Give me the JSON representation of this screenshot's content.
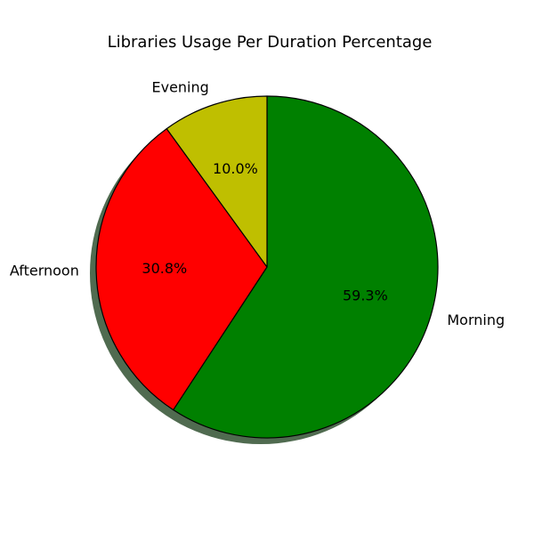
{
  "chart_data": {
    "type": "pie",
    "title": "Libraries Usage Per Duration Percentage",
    "categories": [
      "Morning",
      "Afternoon",
      "Evening"
    ],
    "values": [
      59.3,
      30.8,
      10.0
    ],
    "value_labels": [
      "59.3%",
      "30.8%",
      "10.0%"
    ],
    "colors": [
      "#008000",
      "#ff0000",
      "#bfbf00"
    ],
    "edge_color": "#000000",
    "shadow_color": "#506b50",
    "shadow": true,
    "start_angle_deg": 90,
    "direction": "clockwise"
  }
}
